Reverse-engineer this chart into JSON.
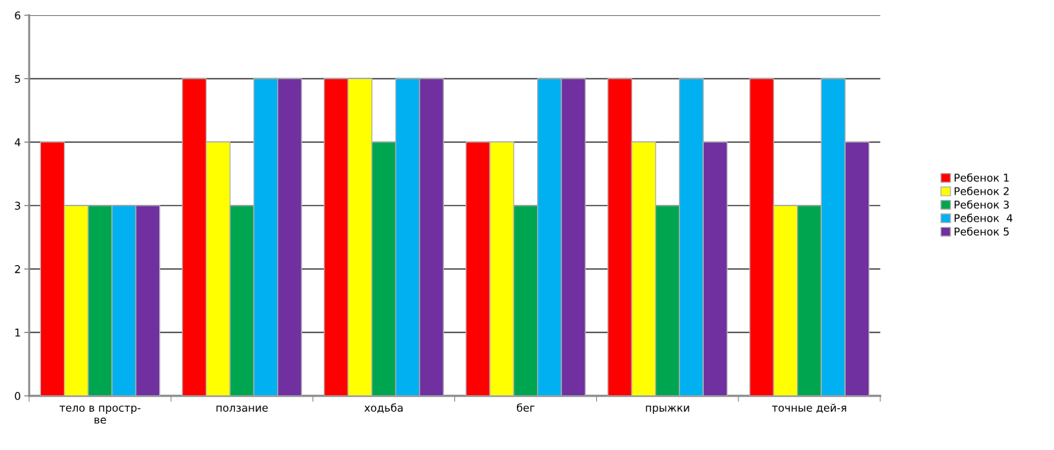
{
  "chart_data": {
    "type": "bar",
    "categories": [
      "тело в простр-\nве",
      "ползание",
      "ходьба",
      "бег",
      "прыжки",
      "точные дей-я"
    ],
    "series": [
      {
        "name": "Ребенок 1",
        "color": "#ff0000",
        "values": [
          4,
          5,
          5,
          4,
          5,
          5
        ]
      },
      {
        "name": "Ребенок 2",
        "color": "#ffff00",
        "values": [
          3,
          4,
          5,
          4,
          4,
          3
        ]
      },
      {
        "name": "Ребенок 3",
        "color": "#00a550",
        "values": [
          3,
          3,
          4,
          3,
          3,
          3
        ]
      },
      {
        "name": "Ребенок  4",
        "color": "#00b0f0",
        "values": [
          3,
          5,
          5,
          5,
          5,
          5
        ]
      },
      {
        "name": "Ребенок 5",
        "color": "#7030a0",
        "values": [
          3,
          5,
          5,
          5,
          4,
          4
        ]
      }
    ],
    "ylim": [
      0,
      6
    ],
    "yticks": [
      0,
      1,
      2,
      3,
      4,
      5,
      6
    ],
    "grid": "y",
    "legend": "right"
  }
}
